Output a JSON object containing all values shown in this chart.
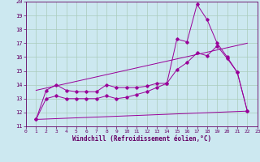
{
  "xlabel": "Windchill (Refroidissement éolien,°C)",
  "bg_color": "#cce8f0",
  "line_color": "#990099",
  "grid_color": "#aaccbb",
  "xlim": [
    0,
    23
  ],
  "ylim": [
    11,
    20
  ],
  "xticks": [
    0,
    1,
    2,
    3,
    4,
    5,
    6,
    7,
    8,
    9,
    10,
    11,
    12,
    13,
    14,
    15,
    16,
    17,
    18,
    19,
    20,
    21,
    22,
    23
  ],
  "yticks": [
    11,
    12,
    13,
    14,
    15,
    16,
    17,
    18,
    19,
    20
  ],
  "series": {
    "zigzag": {
      "x": [
        1,
        2,
        3,
        4,
        5,
        6,
        7,
        8,
        9,
        10,
        11,
        12,
        13,
        14,
        15,
        16,
        17,
        18,
        19,
        20,
        21,
        22
      ],
      "y": [
        11.5,
        13.6,
        14.0,
        13.6,
        13.5,
        13.5,
        13.5,
        14.0,
        13.8,
        13.8,
        13.8,
        13.9,
        14.1,
        14.1,
        17.3,
        17.1,
        19.8,
        18.7,
        17.0,
        16.0,
        14.9,
        12.1
      ]
    },
    "smooth": {
      "x": [
        1,
        2,
        3,
        4,
        5,
        6,
        7,
        8,
        9,
        10,
        11,
        12,
        13,
        14,
        15,
        16,
        17,
        18,
        19,
        20,
        21,
        22
      ],
      "y": [
        11.5,
        13.0,
        13.2,
        13.0,
        13.0,
        13.0,
        13.0,
        13.2,
        13.0,
        13.1,
        13.3,
        13.5,
        13.8,
        14.1,
        15.1,
        15.6,
        16.3,
        16.1,
        16.8,
        15.9,
        14.9,
        12.1
      ]
    }
  },
  "linear_upper": {
    "x": [
      1,
      22
    ],
    "y": [
      13.6,
      17.0
    ]
  },
  "linear_lower": {
    "x": [
      1,
      22
    ],
    "y": [
      11.5,
      12.1
    ]
  }
}
